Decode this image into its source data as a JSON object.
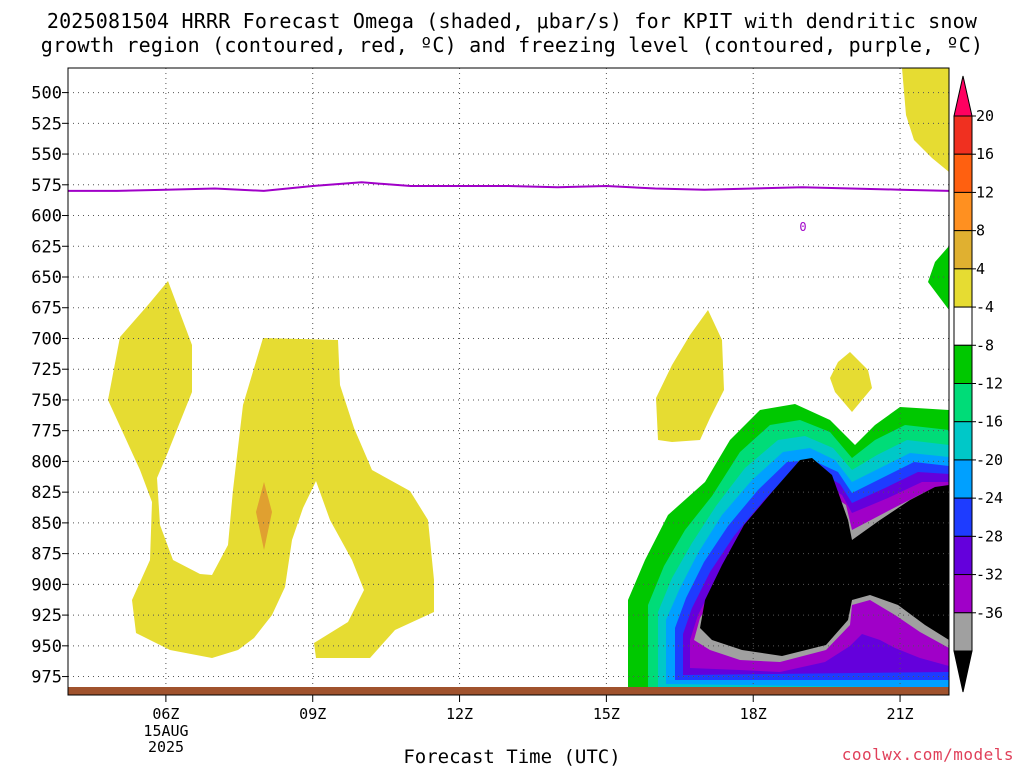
{
  "title_line1": "2025081504 HRRR Forecast Omega (shaded, μbar/s) for KPIT with dendritic snow",
  "title_line2": "growth region (contoured, red, ºC) and freezing level (contoured, purple, ºC)",
  "xlabel": "Forecast Time (UTC)",
  "date_day": "15AUG",
  "date_year": "2025",
  "credit": "coolwx.com/models",
  "chart_data": {
    "type": "contour",
    "y_axis": {
      "label": "",
      "ticks": [
        500,
        525,
        550,
        575,
        600,
        625,
        650,
        675,
        700,
        725,
        750,
        775,
        800,
        825,
        850,
        875,
        900,
        925,
        950,
        975
      ],
      "range": [
        480,
        990
      ],
      "inverted": true,
      "units": "mb"
    },
    "x_axis": {
      "ticks": [
        "06Z",
        "09Z",
        "12Z",
        "15Z",
        "18Z",
        "21Z"
      ],
      "tick_hours": [
        6,
        9,
        12,
        15,
        18,
        21
      ],
      "range_hours": [
        4.0,
        22.0
      ]
    },
    "grid": true,
    "colorbar": {
      "labels": [
        "20",
        "16",
        "12",
        "8",
        "4",
        "-4",
        "-8",
        "-12",
        "-16",
        "-20",
        "-24",
        "-28",
        "-32",
        "-36"
      ],
      "colors": [
        "#ff0060",
        "#f03020",
        "#ff6010",
        "#ff9020",
        "#e0b030",
        "#e6dc32",
        "#ffffff",
        "#00c800",
        "#00dc78",
        "#00c8c8",
        "#00a0ff",
        "#1e3cff",
        "#6400dc",
        "#a000c8",
        "#a0a0a0",
        "#000000"
      ]
    },
    "freezing_level": {
      "contour_label": "0",
      "color": "#a000c8",
      "x_hours": [
        4.0,
        5.0,
        6.0,
        7.0,
        8.0,
        9.0,
        10.0,
        11.0,
        12.0,
        13.0,
        14.0,
        15.0,
        16.0,
        17.0,
        18.0,
        19.0,
        20.0,
        21.0,
        22.0
      ],
      "pressure_mb": [
        580,
        580,
        579,
        578,
        580,
        576,
        573,
        576,
        576,
        576,
        577,
        576,
        578,
        579,
        578,
        577,
        578,
        579,
        580
      ]
    },
    "surface_color": "#a0522d"
  }
}
